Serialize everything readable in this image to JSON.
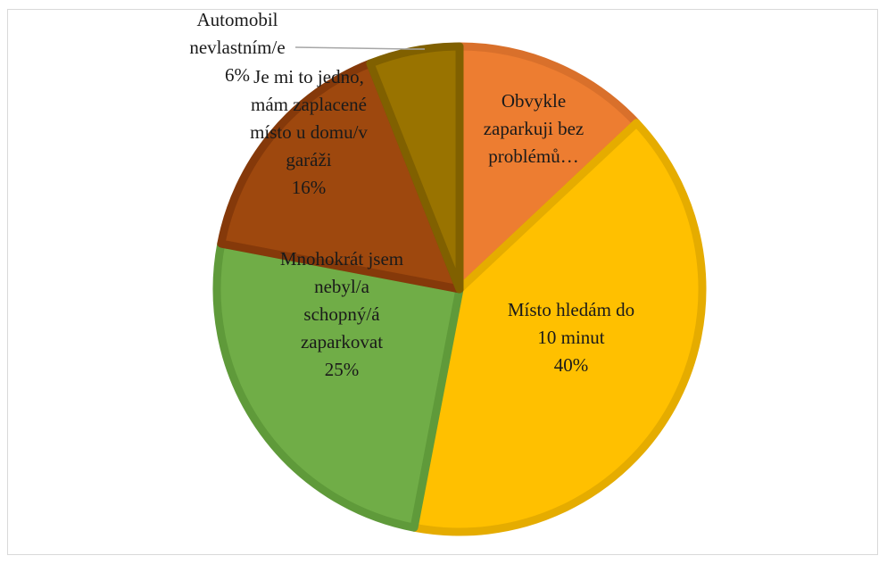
{
  "chart_data": {
    "type": "pie",
    "title": "",
    "slices": [
      {
        "label": "Obvykle zaparkuji bez problémů…",
        "lines": [
          "Obvykle",
          "zaparkuji bez",
          "problémů…"
        ],
        "value": 13,
        "color": "#ED7D31",
        "stroke": "#D9702B"
      },
      {
        "label": "Místo hledám do 10 minut",
        "lines": [
          "Místo hledám do",
          "10 minut",
          "40%"
        ],
        "value": 40,
        "color": "#FFC000",
        "stroke": "#E5AC00"
      },
      {
        "label": "Mnohokrát jsem nebyl/a schopný/á zaparkovat",
        "lines": [
          "Mnohokrát jsem",
          "nebyl/a",
          "schopný/á",
          "zaparkovat",
          "25%"
        ],
        "value": 25,
        "color": "#70AD47",
        "stroke": "#5F9A3A"
      },
      {
        "label": "Je mi to jedno, mám zaplacené místo u domu/v garáži",
        "lines": [
          "Je mi to jedno,",
          "mám zaplacené",
          "místo u domu/v",
          "garáži",
          "16%"
        ],
        "value": 16,
        "color": "#9E480E",
        "stroke": "#85390A"
      },
      {
        "label": "Automobil nevlastním/e",
        "lines": [
          "Automobil",
          "nevlastním/e",
          "6%"
        ],
        "value": 6,
        "color": "#997300",
        "stroke": "#806000"
      }
    ],
    "legend": "none"
  }
}
